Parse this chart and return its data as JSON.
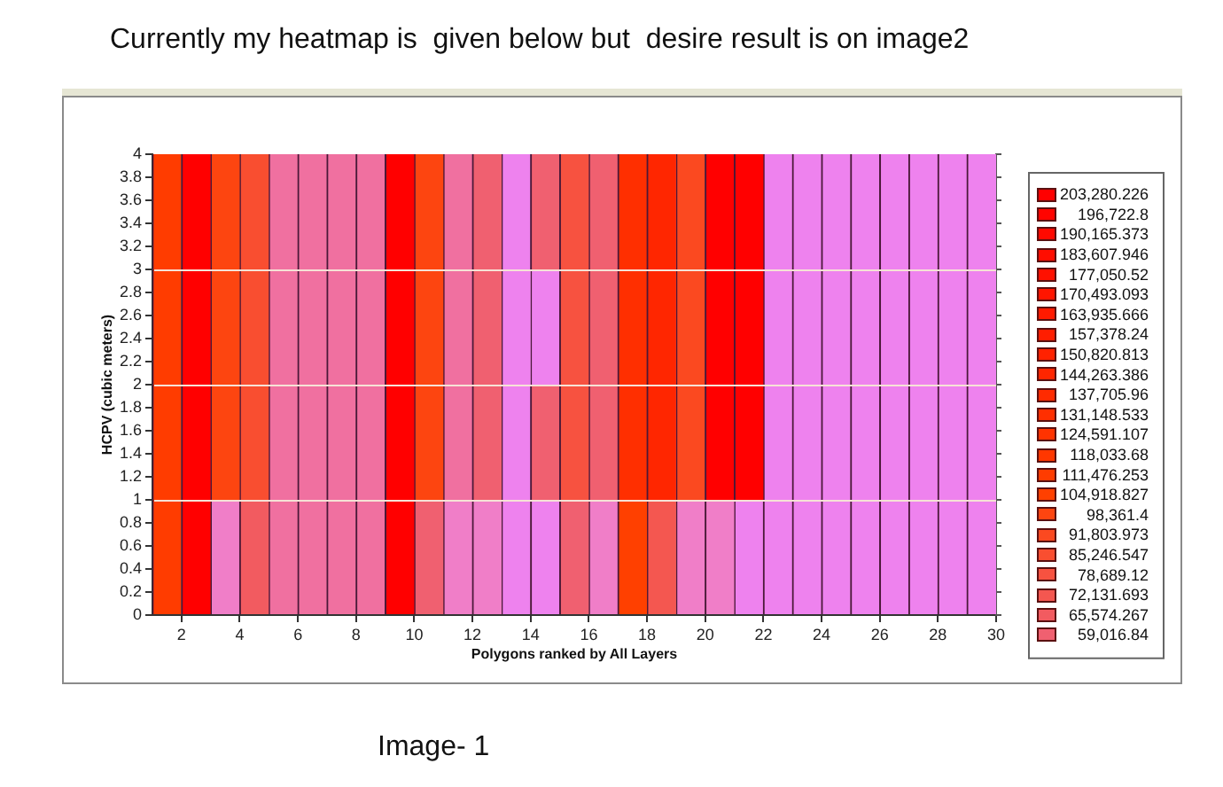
{
  "chart_data": {
    "type": "bar",
    "title": "Currently my heatmap is  given below but  desire result is on image2",
    "xlabel": "Polygons ranked by All Layers",
    "ylabel": "HCPV (cubic meters)",
    "annotations": [
      "Image- 1"
    ],
    "legend": "right",
    "xlim": [
      1,
      30
    ],
    "xticks": [
      2,
      4,
      6,
      8,
      10,
      12,
      14,
      16,
      18,
      20,
      22,
      24,
      26,
      28,
      30
    ],
    "ylim": [
      0,
      4
    ],
    "yticks": [
      0,
      0.2,
      0.4,
      0.6,
      0.8,
      1,
      1.2,
      1.4,
      1.6,
      1.8,
      2,
      2.2,
      2.4,
      2.6,
      2.8,
      3,
      3.2,
      3.4,
      3.6,
      3.8,
      4
    ],
    "ref_lines": [
      {
        "axis": "y",
        "value": 1,
        "color": "#f6e2d6"
      },
      {
        "axis": "y",
        "value": 2,
        "color": "#f6e2d6"
      },
      {
        "axis": "y",
        "value": 3,
        "color": "#f6e2d6"
      }
    ],
    "series": [
      {
        "name": "203,280.226",
        "color": "#ff0000",
        "x": [
          2.5,
          9.5,
          20.5,
          21.5
        ],
        "base": [
          0,
          0,
          1,
          1
        ],
        "values": [
          4,
          4,
          3,
          3
        ]
      },
      {
        "name": "196,722.8",
        "color": "#ff0400"
      },
      {
        "name": "190,165.373",
        "color": "#ff0900"
      },
      {
        "name": "183,607.946",
        "color": "#ff0d00"
      },
      {
        "name": "177,050.52",
        "color": "#ff1100"
      },
      {
        "name": "170,493.093",
        "color": "#ff1500"
      },
      {
        "name": "163,935.666",
        "color": "#ff1a00"
      },
      {
        "name": "157,378.24",
        "color": "#ff1e00"
      },
      {
        "name": "150,820.813",
        "color": "#ff2200"
      },
      {
        "name": "144,263.386",
        "color": "#ff2600",
        "x": [
          18.5
        ],
        "base": [
          1
        ],
        "values": [
          3
        ]
      },
      {
        "name": "137,705.96",
        "color": "#ff2b00"
      },
      {
        "name": "131,148.533",
        "color": "#ff2f00",
        "x": [
          17.5
        ],
        "base": [
          1
        ],
        "values": [
          3
        ]
      },
      {
        "name": "124,591.107",
        "color": "#ff3300"
      },
      {
        "name": "118,033.68",
        "color": "#ff3700"
      },
      {
        "name": "111,476.253",
        "color": "#ff3c00",
        "x": [
          1.5
        ],
        "base": [
          0
        ],
        "values": [
          4
        ]
      },
      {
        "name": "104,918.827",
        "color": "#ff4000",
        "x": [
          17.5
        ],
        "base": [
          0
        ],
        "values": [
          1
        ]
      },
      {
        "name": "98,361.4",
        "color": "#fd4510",
        "x": [
          3.5,
          10.5
        ],
        "base": [
          1,
          1
        ],
        "values": [
          3,
          3
        ]
      },
      {
        "name": "91,803.973",
        "color": "#fb4920",
        "x": [
          19.5
        ],
        "base": [
          1
        ],
        "values": [
          3
        ]
      },
      {
        "name": "85,246.547",
        "color": "#f94e30",
        "x": [
          4.5
        ],
        "base": [
          1
        ],
        "values": [
          3
        ]
      },
      {
        "name": "78,689.12",
        "color": "#f75240",
        "x": [
          15.5
        ],
        "base": [
          1
        ],
        "values": [
          3
        ]
      },
      {
        "name": "72,131.693",
        "color": "#f45750",
        "x": [
          18.5
        ],
        "base": [
          0
        ],
        "values": [
          1
        ]
      },
      {
        "name": "65,574.267",
        "color": "#f25b60",
        "x": [
          4.5
        ],
        "base": [
          0
        ],
        "values": [
          1
        ]
      },
      {
        "name": "59,016.84",
        "color": "#f06070",
        "x": [
          10.5,
          12.5,
          14.5,
          15.5,
          16.5
        ],
        "base": [
          0,
          1,
          1,
          0,
          1
        ],
        "values": [
          1,
          3,
          1,
          1,
          3
        ]
      },
      {
        "color": "#f06070",
        "x": [
          14.5
        ],
        "base": [
          3
        ],
        "values": [
          1
        ]
      },
      {
        "color": "#f070a0",
        "x": [
          5.5,
          6.5,
          7.5,
          8.5,
          11.5
        ],
        "base": [
          0,
          0,
          0,
          0,
          1
        ],
        "values": [
          4,
          4,
          4,
          4,
          3
        ]
      },
      {
        "color": "#f07ec8",
        "x": [
          3.5,
          11.5,
          12.5,
          16.5,
          19.5,
          20.5
        ],
        "base": [
          0,
          0,
          0,
          0,
          0,
          0
        ],
        "values": [
          1,
          1,
          1,
          1,
          1,
          1
        ]
      },
      {
        "color": "#ee82ee",
        "x": [
          13.5,
          14.5,
          21.5,
          22.5,
          23.5,
          24.5,
          25.5,
          26.5,
          27.5,
          28.5,
          29.5
        ],
        "base": [
          0,
          0,
          0,
          0,
          0,
          0,
          0,
          0,
          0,
          0,
          0
        ],
        "values": [
          4,
          1,
          1,
          4,
          4,
          4,
          4,
          4,
          4,
          4,
          4
        ]
      },
      {
        "color": "#ee82ee",
        "x": [
          14.5
        ],
        "base": [
          2
        ],
        "values": [
          1
        ]
      }
    ]
  }
}
